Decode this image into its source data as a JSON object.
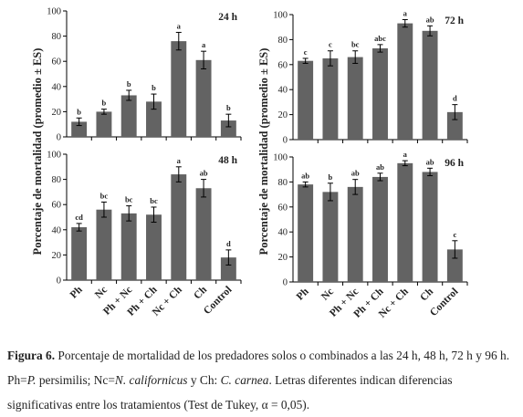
{
  "y_axis_label": "Porcentaje de mortalidad (promedio ± ES)",
  "caption": {
    "label": "Figura 6.",
    "p1": " Porcentaje de mortalidad de los predadores solos o combinados a las 24 h, 48 h, 72 h y 96 h. Ph=",
    "sp1": "P.",
    "p2": " persimilis; Nc=",
    "sp2": "N. californicus",
    "p3": " y Ch: ",
    "sp3": "C. carnea",
    "p4": ". Letras diferentes indican diferencias significativas entre los tratamientos (Test de Tukey, α = 0,05)."
  },
  "chart_data": [
    {
      "type": "bar",
      "title": "24 h",
      "categories": [
        "Ph",
        "Nc",
        "Ph + Nc",
        "Ph + Ch",
        "Nc + Ch",
        "Ch",
        "Control"
      ],
      "values": [
        12,
        20,
        33,
        28,
        76,
        61,
        13
      ],
      "errors": [
        3,
        2,
        4,
        6,
        7,
        7,
        5
      ],
      "letters": [
        "b",
        "b",
        "b",
        "b",
        "a",
        "a",
        "b"
      ],
      "ylim": [
        0,
        100
      ],
      "yticks": [
        0,
        20,
        40,
        60,
        80,
        100
      ],
      "bar_color": "#636363"
    },
    {
      "type": "bar",
      "title": "72 h",
      "categories": [
        "Ph",
        "Nc",
        "Ph + Nc",
        "Ph + Ch",
        "Nc + Ch",
        "Ch",
        "Control"
      ],
      "values": [
        63,
        65,
        66,
        73,
        93,
        87,
        22
      ],
      "errors": [
        2,
        6,
        5,
        3,
        3,
        4,
        6
      ],
      "letters": [
        "c",
        "c",
        "bc",
        "abc",
        "a",
        "ab",
        "d"
      ],
      "ylim": [
        0,
        100
      ],
      "yticks": [
        0,
        20,
        40,
        60,
        80,
        100
      ],
      "bar_color": "#636363"
    },
    {
      "type": "bar",
      "title": "48 h",
      "categories": [
        "Ph",
        "Nc",
        "Ph + Nc",
        "Ph + Ch",
        "Nc + Ch",
        "Ch",
        "Control"
      ],
      "values": [
        42,
        56,
        53,
        52,
        84,
        73,
        18
      ],
      "errors": [
        3,
        6,
        6,
        6,
        6,
        7,
        6
      ],
      "letters": [
        "cd",
        "bc",
        "bc",
        "bc",
        "a",
        "ab",
        "d"
      ],
      "ylim": [
        0,
        100
      ],
      "yticks": [
        0,
        20,
        40,
        60,
        80,
        100
      ],
      "bar_color": "#636363"
    },
    {
      "type": "bar",
      "title": "96 h",
      "categories": [
        "Ph",
        "Nc",
        "Ph + Nc",
        "Ph + Ch",
        "Nc + Ch",
        "Ch",
        "Control"
      ],
      "values": [
        78,
        72,
        76,
        84,
        95,
        88,
        26
      ],
      "errors": [
        2,
        7,
        6,
        3,
        2,
        3,
        7
      ],
      "letters": [
        "ab",
        "b",
        "ab",
        "ab",
        "a",
        "ab",
        "c"
      ],
      "ylim": [
        0,
        100
      ],
      "yticks": [
        0,
        20,
        40,
        60,
        80,
        100
      ],
      "bar_color": "#636363"
    }
  ]
}
